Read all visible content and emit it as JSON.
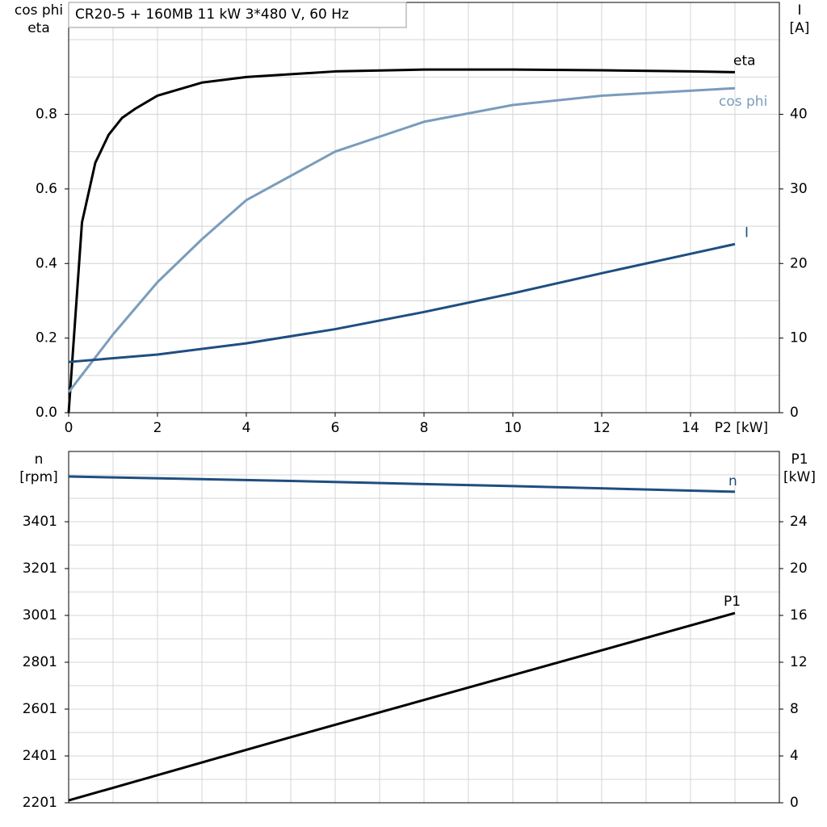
{
  "title": "CR20-5 + 160MB   11 kW   3*480 V, 60 Hz",
  "chart_data": [
    {
      "type": "line",
      "ylabel": [
        "cos phi",
        "eta"
      ],
      "y2label": [
        "I",
        "[A]"
      ],
      "xlabel": "P2 [kW]",
      "xlim": [
        0,
        16
      ],
      "xticks": [
        0,
        2,
        4,
        6,
        8,
        10,
        12,
        14
      ],
      "minor_xticks": [
        1,
        3,
        5,
        7,
        9,
        11,
        13,
        15
      ],
      "ylim": [
        0,
        1.1
      ],
      "yticks": [
        {
          "value": 0,
          "label": "0.0"
        },
        0.2,
        0.4,
        0.6,
        0.8
      ],
      "minor_yticks": [
        0.1,
        0.3,
        0.5,
        0.7,
        0.9,
        1.0
      ],
      "y2lim": [
        0,
        55
      ],
      "y2ticks": [
        0,
        10,
        20,
        30,
        40
      ],
      "grid": true,
      "series": [
        {
          "name": "eta",
          "color": "#000000",
          "x": [
            0,
            0.3,
            0.6,
            0.9,
            1.2,
            1.5,
            2,
            3,
            4,
            6,
            8,
            10,
            12,
            14,
            15
          ],
          "values": [
            0,
            0.51,
            0.67,
            0.745,
            0.79,
            0.815,
            0.85,
            0.885,
            0.9,
            0.915,
            0.92,
            0.92,
            0.918,
            0.915,
            0.913
          ]
        },
        {
          "name": "cos phi",
          "color": "#7a9cbc",
          "x": [
            0,
            1,
            2,
            3,
            4,
            6,
            8,
            10,
            12,
            15
          ],
          "values": [
            0.055,
            0.21,
            0.35,
            0.465,
            0.57,
            0.7,
            0.78,
            0.825,
            0.85,
            0.87
          ]
        },
        {
          "name": "I",
          "color": "#1f4e80",
          "axis": "y2",
          "x": [
            0,
            2,
            4,
            6,
            8,
            10,
            12,
            15
          ],
          "values": [
            6.8,
            7.8,
            9.3,
            11.2,
            13.5,
            16,
            18.7,
            22.6
          ]
        }
      ]
    },
    {
      "type": "line",
      "ylabel": [
        "n",
        "[rpm]"
      ],
      "y2label": [
        "P1",
        "[kW]"
      ],
      "xlim": [
        0,
        16
      ],
      "minor_xticks": [
        1,
        2,
        3,
        4,
        5,
        6,
        7,
        8,
        9,
        10,
        11,
        12,
        13,
        14,
        15
      ],
      "ylim": [
        2201,
        3701
      ],
      "yticks": [
        2201,
        2401,
        2601,
        2801,
        3001,
        3201,
        3401
      ],
      "minor_yticks": [
        2301,
        2501,
        2701,
        2901,
        3101,
        3301,
        3501,
        3601
      ],
      "y2lim": [
        0,
        30
      ],
      "y2ticks": [
        0,
        4,
        8,
        12,
        16,
        20,
        24
      ],
      "grid": true,
      "series": [
        {
          "name": "n",
          "color": "#1f4e80",
          "x": [
            0,
            5,
            10,
            15
          ],
          "values": [
            3594,
            3575,
            3553,
            3529
          ]
        },
        {
          "name": "P1",
          "color": "#000000",
          "axis": "y2",
          "x": [
            0,
            5,
            10,
            15
          ],
          "values": [
            0.2,
            5.6,
            10.9,
            16.2
          ]
        }
      ]
    }
  ]
}
